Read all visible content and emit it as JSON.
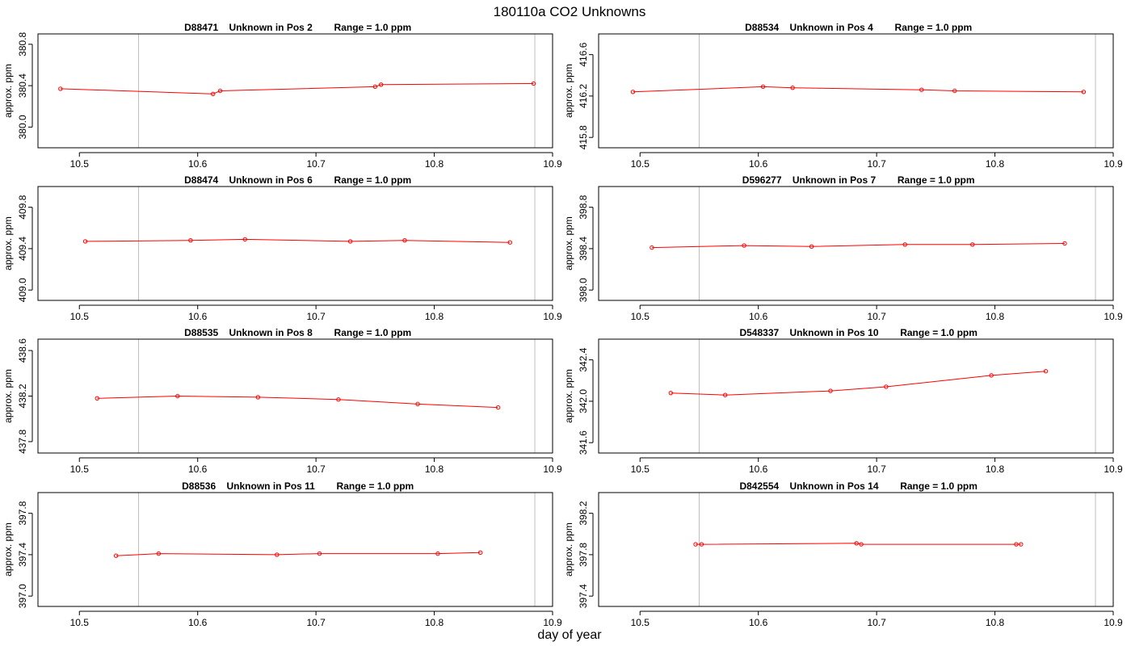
{
  "figure": {
    "title": "180110a  CO2 Unknowns",
    "xlabel": "day of year",
    "ylabel": "approx. ppm"
  },
  "colors": {
    "series": "#ff0000",
    "vline": "#bebebe",
    "axis": "#000000"
  },
  "chart_data": [
    {
      "type": "line",
      "title_parts": [
        "D88471",
        "Unknown in Pos 2",
        "Range = 1.0 ppm"
      ],
      "xlim": [
        10.465,
        10.9
      ],
      "ylim": [
        379.8,
        380.9
      ],
      "xticks": [
        10.5,
        10.6,
        10.7,
        10.8,
        10.9
      ],
      "yticks": [
        380.0,
        380.4,
        380.8
      ],
      "vlines": [
        10.55,
        10.885
      ],
      "x": [
        10.484,
        10.613,
        10.619,
        10.75,
        10.755,
        10.884
      ],
      "y": [
        380.37,
        380.32,
        380.35,
        380.39,
        380.41,
        380.42
      ]
    },
    {
      "type": "line",
      "title_parts": [
        "D88534",
        "Unknown in Pos 4",
        "Range = 1.0 ppm"
      ],
      "xlim": [
        10.465,
        10.9
      ],
      "ylim": [
        415.7,
        416.8
      ],
      "xticks": [
        10.5,
        10.6,
        10.7,
        10.8,
        10.9
      ],
      "yticks": [
        415.8,
        416.2,
        416.6
      ],
      "vlines": [
        10.55,
        10.885
      ],
      "x": [
        10.494,
        10.604,
        10.629,
        10.738,
        10.766,
        10.875
      ],
      "y": [
        416.24,
        416.29,
        416.28,
        416.26,
        416.25,
        416.24
      ]
    },
    {
      "type": "line",
      "title_parts": [
        "D88474",
        "Unknown in Pos 6",
        "Range = 1.0 ppm"
      ],
      "xlim": [
        10.465,
        10.9
      ],
      "ylim": [
        408.9,
        410.0
      ],
      "xticks": [
        10.5,
        10.6,
        10.7,
        10.8,
        10.9
      ],
      "yticks": [
        409.0,
        409.4,
        409.8
      ],
      "vlines": [
        10.55,
        10.885
      ],
      "x": [
        10.505,
        10.594,
        10.64,
        10.729,
        10.775,
        10.864
      ],
      "y": [
        409.47,
        409.48,
        409.49,
        409.47,
        409.48,
        409.46
      ]
    },
    {
      "type": "line",
      "title_parts": [
        "D596277",
        "Unknown in Pos 7",
        "Range = 1.0 ppm"
      ],
      "xlim": [
        10.465,
        10.9
      ],
      "ylim": [
        397.9,
        399.0
      ],
      "xticks": [
        10.5,
        10.6,
        10.7,
        10.8,
        10.9
      ],
      "yticks": [
        398.0,
        398.4,
        398.8
      ],
      "vlines": [
        10.55,
        10.885
      ],
      "x": [
        10.51,
        10.588,
        10.645,
        10.724,
        10.781,
        10.859
      ],
      "y": [
        398.41,
        398.43,
        398.42,
        398.44,
        398.44,
        398.45
      ]
    },
    {
      "type": "line",
      "title_parts": [
        "D88535",
        "Unknown in Pos 8",
        "Range = 1.0 ppm"
      ],
      "xlim": [
        10.465,
        10.9
      ],
      "ylim": [
        437.7,
        438.7
      ],
      "xticks": [
        10.5,
        10.6,
        10.7,
        10.8,
        10.9
      ],
      "yticks": [
        437.8,
        438.2,
        438.6
      ],
      "vlines": [
        10.55,
        10.885
      ],
      "x": [
        10.515,
        10.583,
        10.651,
        10.719,
        10.786,
        10.854
      ],
      "y": [
        438.18,
        438.2,
        438.19,
        438.17,
        438.13,
        438.1
      ]
    },
    {
      "type": "line",
      "title_parts": [
        "D548337",
        "Unknown in Pos 10",
        "Range = 1.0 ppm"
      ],
      "xlim": [
        10.465,
        10.9
      ],
      "ylim": [
        341.5,
        342.6
      ],
      "xticks": [
        10.5,
        10.6,
        10.7,
        10.8,
        10.9
      ],
      "yticks": [
        341.6,
        342.0,
        342.4
      ],
      "vlines": [
        10.55,
        10.885
      ],
      "x": [
        10.526,
        10.572,
        10.661,
        10.708,
        10.797,
        10.843
      ],
      "y": [
        342.08,
        342.06,
        342.1,
        342.14,
        342.25,
        342.29
      ]
    },
    {
      "type": "line",
      "title_parts": [
        "D88536",
        "Unknown in Pos 11",
        "Range = 1.0 ppm"
      ],
      "xlim": [
        10.465,
        10.9
      ],
      "ylim": [
        396.9,
        398.0
      ],
      "xticks": [
        10.5,
        10.6,
        10.7,
        10.8,
        10.9
      ],
      "yticks": [
        397.0,
        397.4,
        397.8
      ],
      "vlines": [
        10.55,
        10.885
      ],
      "x": [
        10.531,
        10.567,
        10.667,
        10.703,
        10.803,
        10.839
      ],
      "y": [
        397.39,
        397.41,
        397.4,
        397.41,
        397.41,
        397.42
      ]
    },
    {
      "type": "line",
      "title_parts": [
        "D842554",
        "Unknown in Pos 14",
        "Range = 1.0 ppm"
      ],
      "xlim": [
        10.465,
        10.9
      ],
      "ylim": [
        397.3,
        398.4
      ],
      "xticks": [
        10.5,
        10.6,
        10.7,
        10.8,
        10.9
      ],
      "yticks": [
        397.4,
        397.8,
        398.2
      ],
      "vlines": [
        10.55,
        10.885
      ],
      "x": [
        10.547,
        10.552,
        10.683,
        10.687,
        10.818,
        10.822
      ],
      "y": [
        397.9,
        397.9,
        397.91,
        397.9,
        397.9,
        397.9
      ]
    }
  ]
}
